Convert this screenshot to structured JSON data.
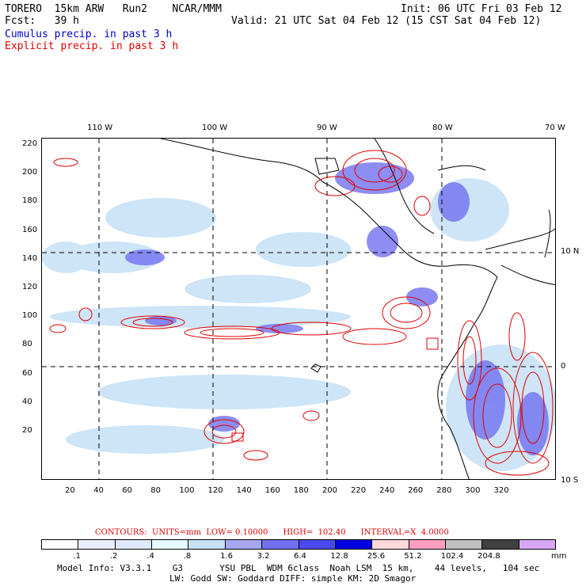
{
  "header": {
    "line1_left": "TORERO  15km ARW   Run2    NCAR/MMM",
    "line1_right": "Init: 06 UTC Fri 03 Feb 12",
    "line2_left": "Fcst:   39 h",
    "line2_right": "Valid: 21 UTC Sat 04 Feb 12 (15 CST Sat 04 Feb 12)",
    "title_cumulus": "Cumulus precip. in past 3 h",
    "title_explicit": "Explicit precip. in past 3 h"
  },
  "axes": {
    "longitude_labels": [
      "110 W",
      "100 W",
      "90 W",
      "80 W",
      "70 W"
    ],
    "latitude_labels": [
      "10 N",
      "0",
      "10 S"
    ],
    "y_ticks": [
      "220",
      "200",
      "180",
      "160",
      "140",
      "120",
      "100",
      "80",
      "60",
      "40",
      "20"
    ],
    "x_ticks": [
      "20",
      "40",
      "60",
      "80",
      "100",
      "120",
      "140",
      "160",
      "180",
      "200",
      "220",
      "240",
      "260",
      "280",
      "300",
      "320"
    ]
  },
  "contours": {
    "label": "CONTOURS:  UNITS=mm  LOW= 0.10000      HIGH=  102.40      INTERVAL=X  4.0000"
  },
  "legend": {
    "values": [
      ".1",
      ".2",
      ".4",
      ".8",
      "1.6",
      "3.2",
      "6.4",
      "12.8",
      "25.6",
      "51.2",
      "102.4",
      "204.8"
    ],
    "unit": "mm",
    "colors": [
      "#ffffff",
      "#ececff",
      "#dfe9ff",
      "#e6fbff",
      "#c6e0f6",
      "#a7a7f0",
      "#7070f0",
      "#4a4aee",
      "#0000e0",
      "#ffd8dc",
      "#ff9ec0",
      "#c0c0c0",
      "#404040",
      "#d8a8f8"
    ]
  },
  "footer": {
    "line1": "Model Info: V3.3.1    G3       YSU PBL  WDM 6class  Noah LSM  15 km,    44 levels,   104 sec",
    "line2": "LW: Godd SW: Goddard DIFF: simple KM: 2D Smagor"
  }
}
